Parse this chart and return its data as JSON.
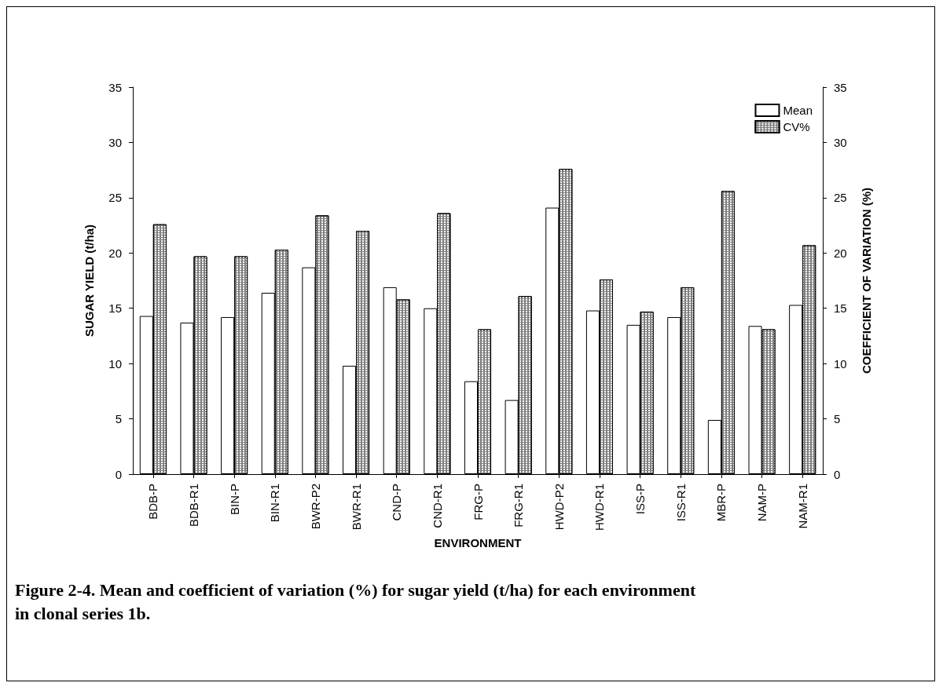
{
  "chart_data": {
    "type": "bar",
    "xlabel": "ENVIRONMENT",
    "ylabel": "SUGAR YIELD (t/ha)",
    "y2label": "COEFFICIENT OF VARIATION (%)",
    "categories": [
      "BDB-P",
      "BDB-R1",
      "BIN-P",
      "BIN-R1",
      "BWR-P2",
      "BWR-R1",
      "CND-P",
      "CND-R1",
      "FRG-P",
      "FRG-R1",
      "HWD-P2",
      "HWD-R1",
      "ISS-P",
      "ISS-R1",
      "MBR-P",
      "NAM-P",
      "NAM-R1"
    ],
    "series": [
      {
        "name": "Mean",
        "color": "#ffffff",
        "values": [
          14.3,
          13.7,
          14.2,
          16.4,
          18.7,
          9.8,
          16.9,
          15.0,
          8.4,
          6.7,
          24.1,
          14.8,
          13.5,
          14.2,
          4.9,
          13.4,
          15.3
        ]
      },
      {
        "name": "CV%",
        "color": "#808080",
        "axis": "y2",
        "values": [
          22.6,
          19.7,
          19.7,
          20.3,
          23.4,
          22.0,
          15.8,
          23.6,
          13.1,
          16.1,
          27.6,
          17.6,
          14.7,
          16.9,
          25.6,
          13.1,
          20.7
        ]
      }
    ],
    "ylim": [
      0,
      35
    ],
    "yticks": [
      0,
      5,
      10,
      15,
      20,
      25,
      30,
      35
    ],
    "y2lim": [
      0,
      35
    ],
    "y2ticks": [
      0,
      5,
      10,
      15,
      20,
      25,
      30,
      35
    ],
    "grid": false,
    "legend": "top right",
    "annotations": [
      "Figure 2-4.  Mean and coefficient of variation (%) for sugar yield (t/ha) for each environment in clonal series 1b."
    ]
  }
}
